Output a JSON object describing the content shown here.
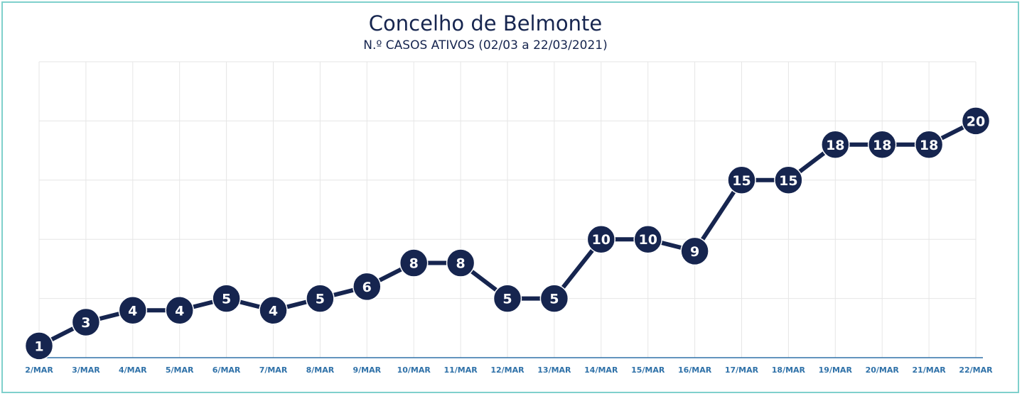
{
  "chart_data": {
    "type": "line",
    "title": "Concelho de Belmonte",
    "subtitle": "N.º CASOS ATIVOS (02/03 a 22/03/2021)",
    "xlabel": "",
    "ylabel": "",
    "categories": [
      "2/MAR",
      "3/MAR",
      "4/MAR",
      "5/MAR",
      "6/MAR",
      "7/MAR",
      "8/MAR",
      "9/MAR",
      "10/MAR",
      "11/MAR",
      "12/MAR",
      "13/MAR",
      "14/MAR",
      "15/MAR",
      "16/MAR",
      "17/MAR",
      "18/MAR",
      "19/MAR",
      "20/MAR",
      "21/MAR",
      "22/MAR"
    ],
    "series": [
      {
        "values": [
          1,
          3,
          4,
          4,
          5,
          4,
          5,
          6,
          8,
          8,
          5,
          5,
          10,
          10,
          9,
          15,
          15,
          18,
          18,
          18,
          20
        ]
      }
    ],
    "ylim": [
      0,
      25
    ],
    "grid": true,
    "data_labels": true,
    "colors": {
      "line": "#16254f",
      "marker": "#16254f",
      "grid": "#e6e6e6",
      "axis": "#2f71a8",
      "frame": "#7fd0cc"
    }
  }
}
